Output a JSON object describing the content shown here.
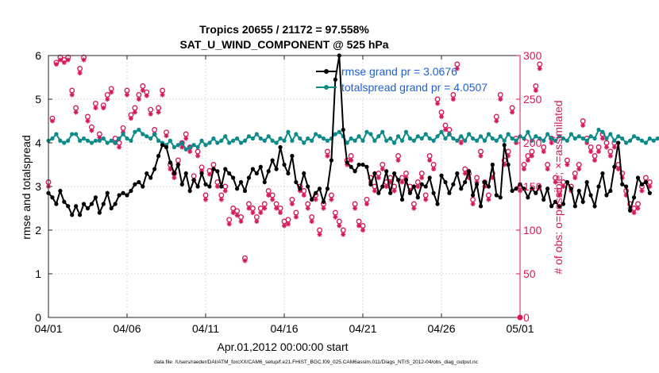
{
  "chart_data": {
    "type": "line",
    "title": "Tropics 20655 / 21172 = 97.558%",
    "subtitle": "SAT_U_WIND_COMPONENT @ 525 hPa",
    "xlabel": "Apr.01,2012 00:00:00 start",
    "ylabel_left": "rmse and totalspread",
    "ylabel_right": "# of obs: o=possible; ×=assimilated",
    "footer": "data file: /Users/raeder/DAI/ATM_forcXX/CAM6_setup/f.e21.FHIST_BGC.f09_025.CAM6assim.011/Diags_NTrS_2012-04/obs_diag_output.nc",
    "xlim": [
      0,
      30
    ],
    "ylim_left": [
      0,
      6
    ],
    "ylim_right": [
      0,
      300
    ],
    "x_ticks": [
      0,
      5,
      10,
      15,
      20,
      25,
      30
    ],
    "x_tick_labels": [
      "04/01",
      "04/06",
      "04/11",
      "04/16",
      "04/21",
      "04/26",
      "05/01"
    ],
    "y_ticks_left": [
      0,
      1,
      2,
      3,
      4,
      5,
      6
    ],
    "y_ticks_right": [
      0,
      50,
      100,
      150,
      200,
      250,
      300
    ],
    "x_step_days": 0.25,
    "series": [
      {
        "name": "rmse",
        "legend": "rmse grand pr = 3.0676",
        "color": "#000000",
        "axis": "left",
        "values": [
          2.85,
          2.75,
          2.6,
          2.9,
          2.65,
          2.55,
          2.35,
          2.55,
          2.35,
          2.6,
          2.5,
          2.6,
          2.75,
          2.4,
          2.6,
          2.85,
          2.5,
          2.6,
          2.8,
          2.85,
          2.8,
          2.9,
          3.05,
          3.1,
          3.0,
          3.3,
          3.2,
          3.4,
          3.7,
          3.95,
          3.9,
          3.55,
          3.3,
          3.5,
          3.05,
          3.3,
          2.9,
          3.15,
          3.0,
          3.3,
          3.05,
          3.0,
          3.4,
          3.35,
          3.0,
          3.4,
          3.3,
          3.2,
          2.95,
          3.1,
          2.9,
          3.2,
          3.4,
          3.3,
          3.45,
          3.1,
          3.35,
          3.6,
          3.4,
          3.9,
          3.5,
          3.3,
          3.7,
          3.1,
          2.95,
          3.3,
          3.0,
          2.7,
          2.85,
          2.95,
          2.65,
          2.95,
          3.6,
          5.45,
          6.0,
          4.3,
          3.55,
          3.45,
          3.35,
          3.5,
          3.5,
          3.45,
          3.05,
          3.3,
          2.85,
          3.0,
          3.35,
          2.85,
          3.3,
          3.15,
          2.7,
          3.15,
          2.85,
          3.0,
          2.75,
          3.05,
          3.0,
          3.2,
          2.85,
          2.6,
          3.25,
          3.1,
          2.85,
          3.05,
          3.3,
          2.95,
          3.1,
          3.35,
          2.8,
          3.05,
          2.55,
          3.1,
          3.0,
          3.5,
          2.8,
          2.75,
          3.95,
          3.5,
          2.9,
          2.95,
          3.05,
          2.95,
          2.75,
          2.95,
          2.85,
          3.0,
          2.7,
          2.95,
          2.55,
          2.65,
          2.55,
          2.6,
          3.1,
          2.95,
          2.55,
          2.9,
          2.65,
          3.1,
          2.8,
          2.55,
          3.0,
          3.3,
          2.8,
          2.9,
          3.45,
          4.0,
          3.05,
          3.0,
          2.45,
          2.75,
          3.2,
          3.05,
          3.1,
          2.85
        ]
      },
      {
        "name": "totalspread",
        "legend": "totalspread grand pr = 4.0507",
        "color": "#0b8a8a",
        "axis": "left",
        "values": [
          4.05,
          4.1,
          4.2,
          4.05,
          4.0,
          4.05,
          4.2,
          4.2,
          4.05,
          4.1,
          4.05,
          4.0,
          4.05,
          4.05,
          4.1,
          4.0,
          4.05,
          4.0,
          4.1,
          4.2,
          4.1,
          4.05,
          4.25,
          4.3,
          4.2,
          4.15,
          4.1,
          4.2,
          4.05,
          4.0,
          3.95,
          4.05,
          3.9,
          3.95,
          4.0,
          3.85,
          3.9,
          3.95,
          3.9,
          4.05,
          3.95,
          4.0,
          4.1,
          4.0,
          4.05,
          4.15,
          4.0,
          4.05,
          4.1,
          4.0,
          4.05,
          4.15,
          4.1,
          4.2,
          4.1,
          4.05,
          4.15,
          4.05,
          4.0,
          4.1,
          4.05,
          4.25,
          4.05,
          4.2,
          4.1,
          4.0,
          4.1,
          4.05,
          4.2,
          4.15,
          4.1,
          4.05,
          4.1,
          4.2,
          4.25,
          4.15,
          4.0,
          4.1,
          4.05,
          4.15,
          4.05,
          4.25,
          4.2,
          4.05,
          4.15,
          4.25,
          4.05,
          4.1,
          4.0,
          4.15,
          4.05,
          4.25,
          4.1,
          4.05,
          4.15,
          4.1,
          4.2,
          4.1,
          4.05,
          4.15,
          4.25,
          4.1,
          4.2,
          4.1,
          4.05,
          4.15,
          4.05,
          4.2,
          4.1,
          4.05,
          4.15,
          4.05,
          4.2,
          4.1,
          4.05,
          4.15,
          4.05,
          4.2,
          4.1,
          4.05,
          4.15,
          4.1,
          4.25,
          4.05,
          4.15,
          4.1,
          4.05,
          4.2,
          4.1,
          4.05,
          4.15,
          4.1,
          4.05,
          4.2,
          4.1,
          4.15,
          4.1,
          4.05,
          4.15,
          4.1,
          4.3,
          4.25,
          4.1,
          4.2,
          4.05,
          4.15,
          4.1,
          4.0,
          4.05,
          4.15,
          4.1,
          4.05,
          4.0,
          4.1,
          4.05,
          4.1
        ]
      },
      {
        "name": "possible",
        "legend": "",
        "color": "#d6175a",
        "axis": "right",
        "marker": "circle",
        "values": [
          155,
          228,
          292,
          298,
          295,
          298,
          260,
          240,
          285,
          298,
          230,
          218,
          245,
          210,
          243,
          255,
          262,
          205,
          200,
          217,
          260,
          232,
          240,
          255,
          265,
          258,
          238,
          215,
          240,
          260,
          212,
          175,
          165,
          180,
          200,
          210,
          195,
          162,
          190,
          172,
          140,
          168,
          175,
          155,
          140,
          150,
          112,
          125,
          122,
          115,
          68,
          130,
          125,
          115,
          125,
          130,
          145,
          140,
          130,
          125,
          110,
          112,
          135,
          120,
          150,
          145,
          130,
          115,
          140,
          100,
          130,
          190,
          140,
          120,
          110,
          100,
          180,
          185,
          130,
          110,
          105,
          135,
          160,
          150,
          165,
          175,
          155,
          160,
          150,
          185,
          160,
          165,
          150,
          130,
          155,
          165,
          140,
          185,
          175,
          250,
          235,
          220,
          215,
          255,
          290,
          205,
          170,
          165,
          135,
          160,
          190,
          155,
          140,
          165,
          230,
          255,
          180,
          190,
          240,
          205,
          150,
          175,
          185,
          190,
          265,
          290,
          195,
          175,
          205,
          160,
          145,
          155,
          180,
          150,
          165,
          175,
          225,
          205,
          195,
          185,
          195,
          210,
          200,
          190,
          200,
          175,
          165,
          145,
          130,
          125,
          130,
          150,
          160,
          155
        ]
      },
      {
        "name": "assimilated",
        "legend": "",
        "color": "#d6175a",
        "axis": "right",
        "marker": "asterisk",
        "values": [
          150,
          225,
          290,
          295,
          292,
          295,
          255,
          235,
          280,
          295,
          225,
          214,
          240,
          206,
          240,
          250,
          258,
          200,
          195,
          212,
          255,
          228,
          235,
          250,
          260,
          254,
          233,
          210,
          235,
          255,
          208,
          170,
          160,
          175,
          195,
          205,
          190,
          157,
          185,
          168,
          135,
          164,
          170,
          150,
          135,
          145,
          107,
          120,
          117,
          110,
          65,
          125,
          120,
          110,
          120,
          125,
          140,
          135,
          125,
          120,
          105,
          107,
          130,
          115,
          145,
          140,
          125,
          110,
          135,
          95,
          125,
          185,
          135,
          115,
          105,
          95,
          175,
          180,
          125,
          105,
          100,
          130,
          155,
          145,
          160,
          170,
          150,
          155,
          145,
          180,
          155,
          160,
          145,
          125,
          150,
          160,
          135,
          180,
          170,
          245,
          230,
          215,
          210,
          250,
          285,
          200,
          165,
          160,
          130,
          155,
          185,
          150,
          135,
          160,
          225,
          250,
          175,
          185,
          235,
          200,
          145,
          170,
          180,
          185,
          260,
          285,
          190,
          170,
          200,
          155,
          140,
          150,
          175,
          145,
          160,
          170,
          220,
          200,
          190,
          180,
          190,
          205,
          195,
          185,
          195,
          170,
          160,
          140,
          125,
          120,
          125,
          145,
          155,
          150
        ]
      }
    ]
  }
}
